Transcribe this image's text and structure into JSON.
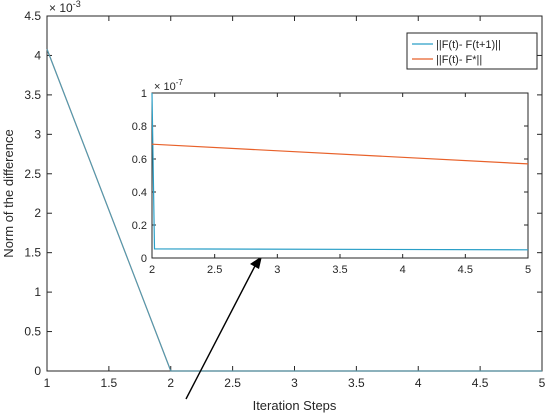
{
  "chart_data": [
    {
      "type": "line",
      "xlabel": "Iteration Steps",
      "ylabel": "Norm of the difference",
      "y_exponent_label": "× 10",
      "y_exponent": "-3",
      "xlim": [
        1,
        5
      ],
      "ylim": [
        0,
        4.5
      ],
      "xticks": [
        1,
        1.5,
        2,
        2.5,
        3,
        3.5,
        4,
        4.5,
        5
      ],
      "yticks": [
        0,
        0.5,
        1,
        1.5,
        2,
        2.5,
        3,
        3.5,
        4,
        4.5
      ],
      "xtick_labels": [
        "1",
        "1.5",
        "2",
        "2.5",
        "3",
        "3.5",
        "4",
        "4.5",
        "5"
      ],
      "ytick_labels": [
        "0",
        "0.5",
        "1",
        "1.5",
        "2",
        "2.5",
        "3",
        "3.5",
        "4",
        "4.5"
      ],
      "grid": false,
      "legend_position": "top-right",
      "series": [
        {
          "name": "||F(t)- F(t+1)||",
          "color": "#2a9fc7",
          "x": [
            1,
            2,
            3,
            4,
            5
          ],
          "y": [
            4.08,
            0,
            0,
            0,
            0
          ]
        },
        {
          "name": "||F(t)- F*||",
          "color": "#e8612a",
          "x": [
            1,
            2,
            3,
            4,
            5
          ],
          "y": [
            4.08,
            0,
            0,
            0,
            0
          ]
        }
      ]
    },
    {
      "type": "line",
      "xlabel": "",
      "ylabel": "",
      "y_exponent_label": "× 10",
      "y_exponent": "-7",
      "xlim": [
        2,
        5
      ],
      "ylim": [
        0,
        1
      ],
      "xticks": [
        2,
        2.5,
        3,
        3.5,
        4,
        4.5,
        5
      ],
      "yticks": [
        0,
        0.2,
        0.4,
        0.6,
        0.8,
        1
      ],
      "xtick_labels": [
        "2",
        "2.5",
        "3",
        "3.5",
        "4",
        "4.5",
        "5"
      ],
      "ytick_labels": [
        "0",
        "0.2",
        "0.4",
        "0.6",
        "0.8",
        "1"
      ],
      "grid": false,
      "series": [
        {
          "name": "||F(t)- F(t+1)||",
          "color": "#2a9fc7",
          "x": [
            2,
            2.02,
            5
          ],
          "y": [
            1,
            0.055,
            0.05
          ]
        },
        {
          "name": "||F(t)- F*||",
          "color": "#e8612a",
          "x": [
            2,
            5
          ],
          "y": [
            0.69,
            0.57
          ]
        }
      ]
    }
  ]
}
